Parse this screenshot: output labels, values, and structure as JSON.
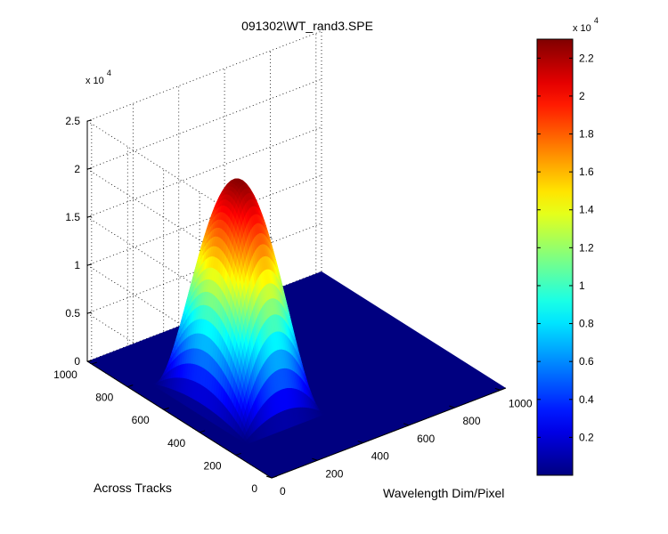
{
  "chart_data": {
    "type": "surface",
    "title": "091302\\WT_rand3.SPE",
    "xlabel": "Wavelength Dim/Pixel",
    "ylabel": "Across Tracks",
    "zlabel": "",
    "z_multiplier_label": {
      "base": "x 10",
      "exp": "4"
    },
    "x": {
      "range": [
        0,
        1024
      ],
      "ticks": [
        0,
        200,
        400,
        600,
        800,
        1000
      ]
    },
    "y": {
      "range": [
        0,
        1024
      ],
      "ticks": [
        0,
        200,
        400,
        600,
        800,
        1000
      ]
    },
    "z": {
      "range": [
        0,
        2.5
      ],
      "ticks": [
        0,
        0.5,
        1,
        1.5,
        2,
        2.5
      ],
      "units_scale": 10000
    },
    "grid": true,
    "colormap": "jet",
    "peak": {
      "x": 250,
      "y": 500,
      "z": 2.28
    },
    "surface_extent": {
      "x": [
        0,
        520
      ],
      "y": [
        0,
        1000
      ],
      "z_min": 0
    },
    "colorbar": {
      "range": [
        0,
        2.3
      ],
      "ticks": [
        0.2,
        0.4,
        0.6,
        0.8,
        1,
        1.2,
        1.4,
        1.6,
        1.8,
        2,
        2.2
      ],
      "multiplier_label": {
        "base": "x 10",
        "exp": "4"
      }
    }
  }
}
